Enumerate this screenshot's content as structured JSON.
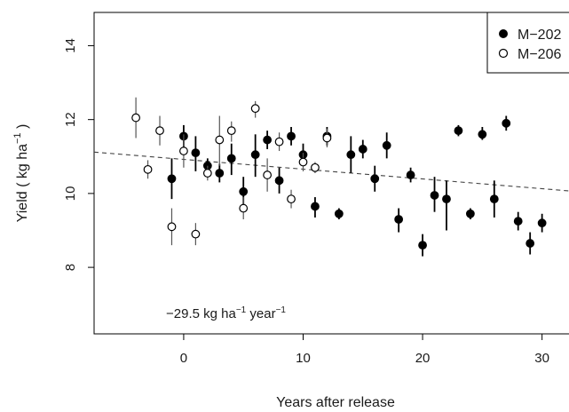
{
  "chart_data": {
    "type": "scatter",
    "title": "",
    "xlabel": "Years after release",
    "ylabel": "Yield ( kg ha",
    "ylabel_sup": "−1",
    "ylabel_end": " )",
    "xlim": [
      -7.5,
      33
    ],
    "ylim": [
      6.2,
      14.9
    ],
    "x_ticks": [
      0,
      10,
      20,
      30
    ],
    "y_ticks": [
      8,
      10,
      12,
      14
    ],
    "grid": false,
    "legend_position": "top-right",
    "annotation": {
      "main": "−29.5 kg ha",
      "sup1": "−1",
      "mid": " year",
      "sup2": "−1"
    },
    "trend_line": {
      "x": [
        -7.5,
        33
      ],
      "y": [
        11.12,
        10.05
      ],
      "style": "dashed"
    },
    "series": [
      {
        "name": "M−202",
        "marker": "filled-circle",
        "color": "#000000",
        "points": [
          {
            "x": 0,
            "y": 11.55,
            "lo": 11.25,
            "hi": 11.85
          },
          {
            "x": -1,
            "y": 10.4,
            "lo": 9.85,
            "hi": 10.95
          },
          {
            "x": 1,
            "y": 11.1,
            "lo": 10.6,
            "hi": 11.55
          },
          {
            "x": 2,
            "y": 10.75,
            "lo": 10.55,
            "hi": 10.95
          },
          {
            "x": 3,
            "y": 10.55,
            "lo": 10.3,
            "hi": 10.8
          },
          {
            "x": 4,
            "y": 10.95,
            "lo": 10.5,
            "hi": 11.35
          },
          {
            "x": 5,
            "y": 10.05,
            "lo": 9.65,
            "hi": 10.45
          },
          {
            "x": 6,
            "y": 11.05,
            "lo": 10.45,
            "hi": 11.6
          },
          {
            "x": 7,
            "y": 11.45,
            "lo": 11.2,
            "hi": 11.7
          },
          {
            "x": 8,
            "y": 10.35,
            "lo": 10.0,
            "hi": 10.7
          },
          {
            "x": 9,
            "y": 11.55,
            "lo": 11.3,
            "hi": 11.8
          },
          {
            "x": 10,
            "y": 11.05,
            "lo": 10.75,
            "hi": 11.35
          },
          {
            "x": 11,
            "y": 9.65,
            "lo": 9.35,
            "hi": 9.9
          },
          {
            "x": 12,
            "y": 11.55,
            "lo": 11.3,
            "hi": 11.8
          },
          {
            "x": 13,
            "y": 9.45,
            "lo": 9.3,
            "hi": 9.6
          },
          {
            "x": 14,
            "y": 11.05,
            "lo": 10.55,
            "hi": 11.55
          },
          {
            "x": 15,
            "y": 11.2,
            "lo": 10.95,
            "hi": 11.45
          },
          {
            "x": 16,
            "y": 10.4,
            "lo": 10.05,
            "hi": 10.75
          },
          {
            "x": 17,
            "y": 11.3,
            "lo": 10.95,
            "hi": 11.65
          },
          {
            "x": 18,
            "y": 9.3,
            "lo": 8.95,
            "hi": 9.6
          },
          {
            "x": 19,
            "y": 10.5,
            "lo": 10.3,
            "hi": 10.7
          },
          {
            "x": 20,
            "y": 8.6,
            "lo": 8.3,
            "hi": 8.9
          },
          {
            "x": 21,
            "y": 9.95,
            "lo": 9.5,
            "hi": 10.45
          },
          {
            "x": 22,
            "y": 9.85,
            "lo": 9.0,
            "hi": 10.35
          },
          {
            "x": 23,
            "y": 11.7,
            "lo": 11.55,
            "hi": 11.85
          },
          {
            "x": 24,
            "y": 9.45,
            "lo": 9.3,
            "hi": 9.6
          },
          {
            "x": 25,
            "y": 11.6,
            "lo": 11.45,
            "hi": 11.8
          },
          {
            "x": 26,
            "y": 9.85,
            "lo": 9.35,
            "hi": 10.35
          },
          {
            "x": 27,
            "y": 11.9,
            "lo": 11.7,
            "hi": 12.1
          },
          {
            "x": 28,
            "y": 9.25,
            "lo": 9.0,
            "hi": 9.5
          },
          {
            "x": 29,
            "y": 8.65,
            "lo": 8.35,
            "hi": 8.95
          },
          {
            "x": 30,
            "y": 9.2,
            "lo": 8.95,
            "hi": 9.45
          }
        ]
      },
      {
        "name": "M−206",
        "marker": "open-circle",
        "color": "#000000",
        "points": [
          {
            "x": -4,
            "y": 12.05,
            "lo": 11.5,
            "hi": 12.6
          },
          {
            "x": -3,
            "y": 10.65,
            "lo": 10.4,
            "hi": 10.9
          },
          {
            "x": -2,
            "y": 11.7,
            "lo": 11.3,
            "hi": 12.1
          },
          {
            "x": -1,
            "y": 9.1,
            "lo": 8.6,
            "hi": 9.6
          },
          {
            "x": 0,
            "y": 11.15,
            "lo": 10.7,
            "hi": 11.6
          },
          {
            "x": 1,
            "y": 8.9,
            "lo": 8.6,
            "hi": 9.2
          },
          {
            "x": 2,
            "y": 10.55,
            "lo": 10.35,
            "hi": 10.75
          },
          {
            "x": 3,
            "y": 11.45,
            "lo": 10.75,
            "hi": 12.1
          },
          {
            "x": 4,
            "y": 11.7,
            "lo": 11.4,
            "hi": 11.95
          },
          {
            "x": 5,
            "y": 9.6,
            "lo": 9.3,
            "hi": 9.9
          },
          {
            "x": 6,
            "y": 12.3,
            "lo": 12.05,
            "hi": 12.5
          },
          {
            "x": 7,
            "y": 10.5,
            "lo": 10.05,
            "hi": 10.95
          },
          {
            "x": 8,
            "y": 11.4,
            "lo": 11.15,
            "hi": 11.65
          },
          {
            "x": 9,
            "y": 9.85,
            "lo": 9.6,
            "hi": 10.1
          },
          {
            "x": 10,
            "y": 10.85,
            "lo": 10.6,
            "hi": 11.1
          },
          {
            "x": 11,
            "y": 10.7,
            "lo": 10.55,
            "hi": 10.85
          },
          {
            "x": 12,
            "y": 11.5,
            "lo": 11.25,
            "hi": 11.75
          }
        ]
      }
    ]
  }
}
